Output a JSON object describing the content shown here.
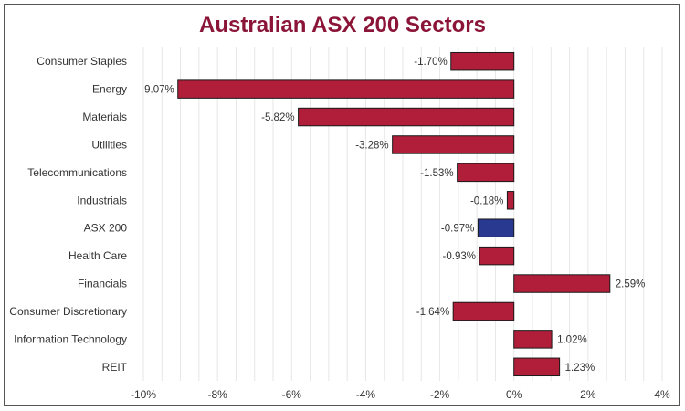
{
  "chart_data": {
    "type": "bar",
    "orientation": "horizontal",
    "title": "Australian ASX 200 Sectors",
    "categories": [
      "Consumer Staples",
      "Energy",
      "Materials",
      "Utilities",
      "Telecommunications",
      "Industrials",
      "ASX 200",
      "Health Care",
      "Financials",
      "Consumer Discretionary",
      "Information Technology",
      "REIT"
    ],
    "values": [
      -1.7,
      -9.07,
      -5.82,
      -3.28,
      -1.53,
      -0.18,
      -0.97,
      -0.93,
      2.59,
      -1.64,
      1.02,
      1.23
    ],
    "value_labels": [
      "-1.70%",
      "-9.07%",
      "-5.82%",
      "-3.28%",
      "-1.53%",
      "-0.18%",
      "-0.97%",
      "-0.93%",
      "2.59%",
      "-1.64%",
      "1.02%",
      "1.23%"
    ],
    "xlim": [
      -10,
      4
    ],
    "x_ticks": [
      -10,
      -8,
      -6,
      -4,
      -2,
      0,
      2,
      4
    ],
    "x_tick_labels": [
      "-10%",
      "-8%",
      "-6%",
      "-4%",
      "-2%",
      "0%",
      "2%",
      "4%"
    ],
    "minor_grid_step": 0.5,
    "grid": true,
    "colors": {
      "bar": "#b01e3a",
      "highlight_bar": "#28398f",
      "highlight_category": "ASX 200",
      "title": "#8b1538",
      "bar_outline": "#1a1a1a",
      "grid": "#e6e6e6"
    }
  }
}
